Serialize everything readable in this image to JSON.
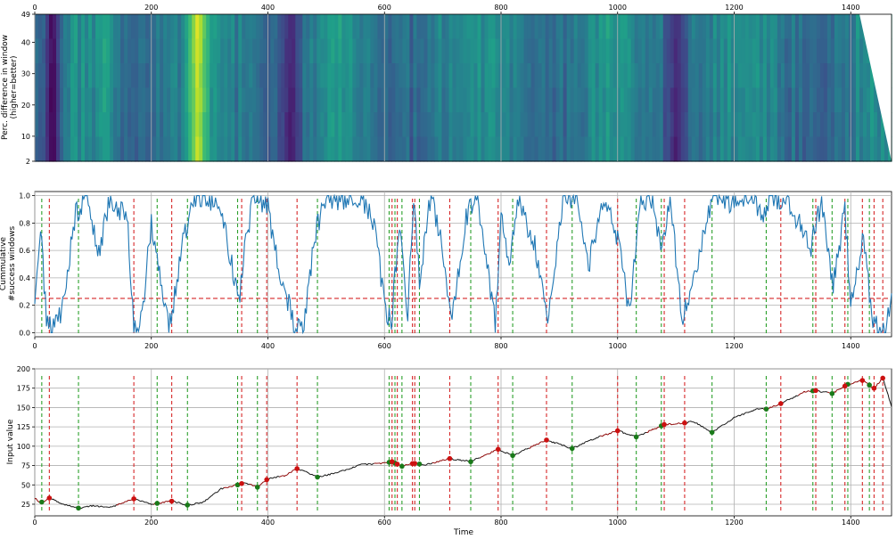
{
  "chart_data": [
    {
      "type": "heatmap",
      "ylabel": "Perc. difference in window\n(higher=better)",
      "x_ticks": [
        0,
        200,
        400,
        600,
        800,
        1000,
        1200,
        1400
      ],
      "y_ticks": [
        2,
        10,
        20,
        30,
        40,
        49
      ],
      "xlim": [
        0,
        1470
      ],
      "ylim": [
        2,
        49
      ],
      "colormap": "viridis",
      "bright_bands": [
        {
          "x": 280,
          "value": 0.95
        },
        {
          "x": 120,
          "value": 0.6
        },
        {
          "x": 1010,
          "value": 0.55
        },
        {
          "x": 1220,
          "value": 0.5
        },
        {
          "x": 730,
          "value": 0.45
        }
      ],
      "dark_bands": [
        {
          "x": 30,
          "value": 0.0
        },
        {
          "x": 440,
          "value": 0.1
        },
        {
          "x": 1100,
          "value": 0.12
        }
      ],
      "x_ticks_on_top": true
    },
    {
      "type": "line",
      "ylabel": "Cummulative\n#success windows",
      "x_ticks": [
        0,
        200,
        400,
        600,
        800,
        1000,
        1200,
        1400
      ],
      "y_ticks": [
        0.0,
        0.2,
        0.4,
        0.6,
        0.8,
        1.0
      ],
      "xlim": [
        0,
        1470
      ],
      "ylim": [
        -0.03,
        1.03
      ],
      "threshold": 0.25,
      "series_color": "#1f77b4",
      "series": [
        {
          "name": "success",
          "x": [
            0,
            10,
            20,
            30,
            45,
            70,
            90,
            110,
            130,
            160,
            170,
            185,
            200,
            215,
            230,
            250,
            270,
            290,
            310,
            330,
            350,
            360,
            375,
            400,
            420,
            445,
            460,
            480,
            500,
            530,
            560,
            585,
            600,
            612,
            625,
            640,
            650,
            660,
            680,
            700,
            715,
            740,
            760,
            790,
            800,
            815,
            830,
            860,
            880,
            905,
            930,
            950,
            980,
            1000,
            1020,
            1040,
            1060,
            1075,
            1090,
            1110,
            1130,
            1150,
            1170,
            1200,
            1230,
            1250,
            1270,
            1300,
            1330,
            1350,
            1370,
            1390,
            1400,
            1420,
            1440,
            1460,
            1470
          ],
          "values": [
            0.3,
            0.75,
            0.1,
            0.0,
            0.15,
            0.85,
            1.0,
            0.6,
            1.0,
            0.8,
            0.0,
            0.15,
            0.8,
            0.4,
            0.0,
            0.55,
            1.0,
            1.0,
            0.95,
            0.7,
            0.2,
            0.6,
            1.0,
            0.9,
            0.45,
            0.05,
            0.0,
            0.7,
            1.0,
            0.95,
            1.0,
            0.75,
            0.2,
            0.05,
            0.8,
            0.15,
            1.0,
            0.4,
            1.0,
            0.6,
            0.1,
            0.85,
            1.0,
            0.05,
            0.9,
            0.5,
            1.0,
            0.6,
            0.05,
            0.95,
            1.0,
            0.5,
            1.0,
            0.7,
            0.15,
            0.95,
            1.0,
            0.6,
            1.0,
            0.1,
            0.35,
            0.8,
            1.0,
            0.95,
            1.0,
            0.85,
            1.0,
            0.9,
            0.6,
            0.95,
            0.35,
            0.9,
            0.2,
            0.7,
            0.05,
            0.0,
            0.3
          ]
        }
      ],
      "buy_signals": [
        12,
        75,
        210,
        262,
        348,
        382,
        485,
        608,
        618,
        630,
        660,
        748,
        820,
        922,
        1032,
        1075,
        1162,
        1255,
        1335,
        1368,
        1395,
        1432
      ],
      "sell_signals": [
        25,
        170,
        235,
        355,
        398,
        450,
        613,
        622,
        648,
        652,
        712,
        795,
        878,
        1000,
        1080,
        1115,
        1280,
        1340,
        1390,
        1420,
        1440,
        1455
      ]
    },
    {
      "type": "line",
      "xlabel": "Time",
      "ylabel": "Input value",
      "x_ticks": [
        0,
        200,
        400,
        600,
        800,
        1000,
        1200,
        1400
      ],
      "y_ticks": [
        25,
        50,
        75,
        100,
        125,
        150,
        175,
        200
      ],
      "xlim": [
        0,
        1470
      ],
      "ylim": [
        10,
        200
      ],
      "series": [
        {
          "name": "input",
          "x": [
            0,
            10,
            25,
            50,
            75,
            100,
            130,
            170,
            200,
            235,
            262,
            290,
            320,
            348,
            360,
            382,
            400,
            430,
            450,
            470,
            485,
            520,
            560,
            600,
            613,
            630,
            650,
            670,
            712,
            748,
            795,
            820,
            878,
            922,
            960,
            1000,
            1032,
            1080,
            1115,
            1130,
            1162,
            1200,
            1240,
            1255,
            1280,
            1320,
            1340,
            1368,
            1395,
            1420,
            1440,
            1455,
            1470
          ],
          "values": [
            33,
            27,
            33,
            25,
            20,
            23,
            21,
            32,
            25,
            29,
            24,
            28,
            45,
            50,
            53,
            47,
            58,
            62,
            71,
            65,
            60,
            66,
            76,
            78,
            80,
            74,
            78,
            76,
            84,
            80,
            96,
            88,
            108,
            97,
            110,
            120,
            112,
            128,
            130,
            132,
            118,
            137,
            148,
            148,
            155,
            170,
            172,
            168,
            180,
            185,
            175,
            188,
            152
          ]
        }
      ],
      "buy_signals": [
        12,
        75,
        210,
        262,
        348,
        382,
        485,
        608,
        618,
        630,
        660,
        748,
        820,
        922,
        1032,
        1075,
        1162,
        1255,
        1335,
        1368,
        1395,
        1432
      ],
      "sell_signals": [
        25,
        170,
        235,
        355,
        398,
        450,
        613,
        622,
        648,
        652,
        712,
        795,
        878,
        1000,
        1080,
        1115,
        1280,
        1340,
        1390,
        1420,
        1440,
        1455
      ]
    }
  ]
}
